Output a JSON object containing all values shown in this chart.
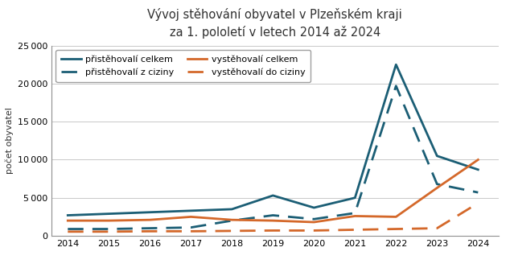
{
  "title": "Vývoj stěhování obyvatel v Plzeňském kraji\nza 1. pololetí v letech 2014 až 2024",
  "title_color": "#303030",
  "ylabel": "počet obyvatel",
  "years": [
    2014,
    2015,
    2016,
    2017,
    2018,
    2019,
    2020,
    2021,
    2022,
    2023,
    2024
  ],
  "pristehovali_celkem": [
    2700,
    2900,
    3100,
    3300,
    3500,
    5300,
    3700,
    5000,
    22500,
    10500,
    8700
  ],
  "pristehovali_z_ciziny": [
    900,
    900,
    1000,
    1100,
    2000,
    2700,
    2200,
    3000,
    19700,
    6800,
    5700
  ],
  "vystehovali_celkem": [
    2000,
    2000,
    2100,
    2500,
    2100,
    2000,
    1800,
    2600,
    2500,
    6300,
    10000
  ],
  "vystehovali_do_ciziny": [
    550,
    550,
    600,
    600,
    650,
    700,
    700,
    800,
    900,
    1000,
    4300
  ],
  "color_dark": "#1b5e75",
  "color_orange": "#d4682a",
  "ylim": [
    0,
    25000
  ],
  "yticks": [
    0,
    5000,
    10000,
    15000,
    20000,
    25000
  ],
  "legend_labels_col1": [
    "přistěhovalí celkem",
    "vystěhovalí celkem"
  ],
  "legend_labels_col2": [
    "přistěhovalí z ciziny",
    "vystěhovalí do ciziny"
  ]
}
